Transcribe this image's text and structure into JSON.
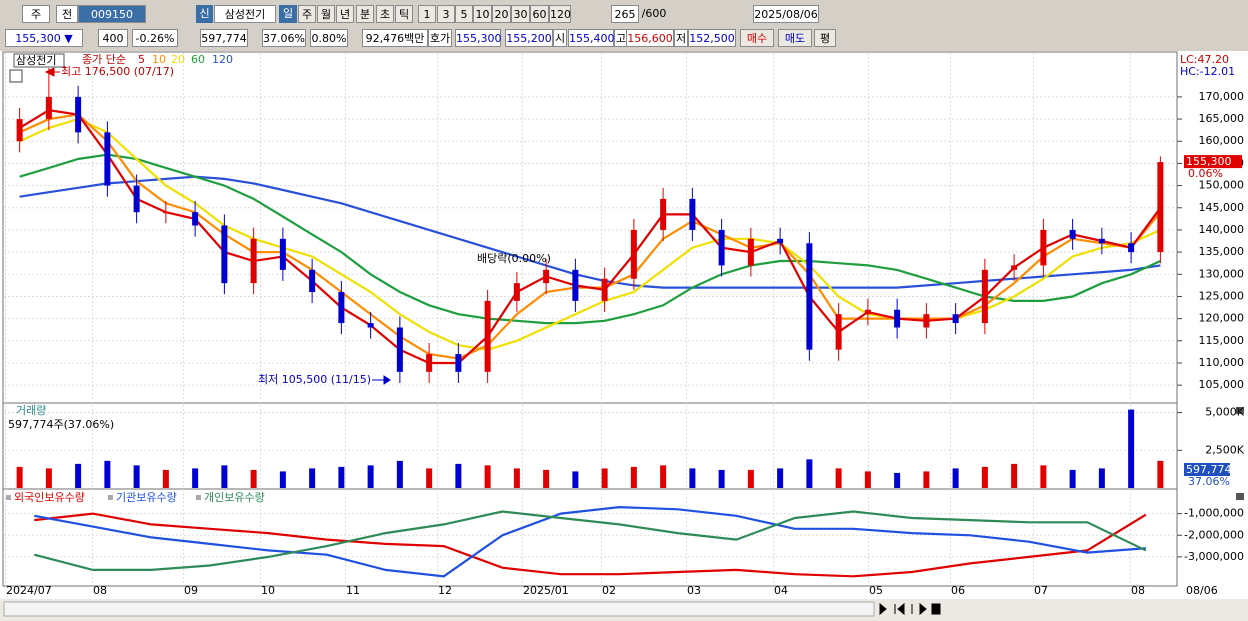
{
  "toolbar": {
    "market": "주",
    "scope": "전",
    "code": "009150",
    "badge": "신",
    "name": "삼성전기",
    "periods": [
      "일",
      "주",
      "월",
      "년",
      "분",
      "초",
      "틱"
    ],
    "intervals": [
      "1",
      "3",
      "5",
      "10",
      "20",
      "30",
      "60",
      "120"
    ],
    "count": "265",
    "count_max": "/600",
    "date": "2025/08/06"
  },
  "info_bar": {
    "price": "155,300 ▼",
    "change": "400",
    "change_rate": "-0.26%",
    "volume": "597,774",
    "volume_ratio": "37.06%",
    "turnover_rate": "0.80%",
    "amount": "92,476백만",
    "quote_label": "호가",
    "ask": "155,300",
    "bid": "155,200",
    "open_label": "시",
    "open": "155,400",
    "high_label": "고",
    "high": "156,600",
    "low_label": "저",
    "low": "152,500",
    "buttons": [
      "매수",
      "매도",
      "평"
    ]
  },
  "date_axis": [
    "2024/07",
    "08",
    "09",
    "10",
    "11",
    "12",
    "2025/01",
    "02",
    "03",
    "04",
    "05",
    "06",
    "07",
    "08",
    "08/06"
  ],
  "chart_data": [
    {
      "type": "candlestick",
      "title": "삼성전기",
      "ma_label": "종가 단순",
      "up_color": "#e00000",
      "down_color": "#0000d0",
      "open": [
        160000,
        165000,
        170000,
        162000,
        150000,
        144000,
        144000,
        141000,
        128000,
        138000,
        131000,
        126000,
        119000,
        118000,
        108000,
        112000,
        108000,
        124000,
        128000,
        131000,
        124000,
        129000,
        140000,
        147000,
        140000,
        132000,
        138000,
        137000,
        113000,
        121000,
        122000,
        118000,
        121000,
        119000,
        131000,
        132000,
        140000,
        138000,
        137000,
        135000
      ],
      "high": [
        167500,
        176500,
        172500,
        164500,
        152500,
        146500,
        146500,
        143500,
        140500,
        140500,
        133500,
        128500,
        121500,
        120500,
        114500,
        114500,
        126500,
        130500,
        133500,
        133500,
        131500,
        142500,
        149500,
        149500,
        142500,
        140500,
        140500,
        139500,
        123500,
        124500,
        124500,
        123500,
        123500,
        133500,
        134500,
        142500,
        142500,
        140500,
        139500,
        156600
      ],
      "low": [
        157500,
        162500,
        159500,
        147500,
        141500,
        141500,
        138500,
        125500,
        125500,
        128500,
        123500,
        116500,
        115500,
        105500,
        105500,
        105500,
        105500,
        121500,
        125500,
        121500,
        121500,
        126500,
        137500,
        137500,
        129500,
        129500,
        134500,
        110500,
        110500,
        118500,
        115500,
        115500,
        116500,
        116500,
        128500,
        129500,
        135500,
        134500,
        132500,
        132500
      ],
      "close": [
        165000,
        170000,
        162000,
        150000,
        144000,
        144000,
        141000,
        128000,
        138000,
        131000,
        126000,
        119000,
        118000,
        108000,
        112000,
        108000,
        124000,
        128000,
        131000,
        124000,
        129000,
        140000,
        147000,
        140000,
        132000,
        138000,
        137000,
        113000,
        121000,
        122000,
        118000,
        121000,
        119000,
        131000,
        132000,
        140000,
        138000,
        137000,
        135000,
        155300
      ],
      "series": [
        {
          "name": "5",
          "color": "#e00000",
          "values": [
            163000,
            167000,
            166000,
            157000,
            147000,
            144000,
            142500,
            135000,
            133000,
            134000,
            128500,
            122500,
            118500,
            113000,
            110000,
            110000,
            116000,
            126000,
            129500,
            127500,
            126500,
            134500,
            143500,
            143500,
            136000,
            135000,
            137500,
            125000,
            117000,
            121500,
            120000,
            119500,
            120000,
            125000,
            131500,
            136000,
            139000,
            137500,
            136000,
            145000
          ]
        },
        {
          "name": "10",
          "color": "#ff8c00",
          "values": [
            162000,
            165000,
            166000,
            160000,
            151000,
            146000,
            144000,
            139000,
            135000,
            135000,
            131000,
            126000,
            121000,
            116000,
            112000,
            111000,
            114000,
            121000,
            126000,
            127000,
            127000,
            130000,
            138000,
            142000,
            139000,
            136000,
            137000,
            130000,
            120000,
            120000,
            120000,
            120000,
            120000,
            123000,
            128000,
            134000,
            138000,
            137000,
            136000,
            144000
          ]
        },
        {
          "name": "20",
          "color": "#f0e000",
          "values": [
            160000,
            163000,
            165000,
            162000,
            156000,
            150000,
            146000,
            141000,
            138000,
            136000,
            134000,
            130000,
            126000,
            121000,
            117000,
            114000,
            113000,
            115000,
            118000,
            121000,
            124000,
            126000,
            131000,
            136000,
            138000,
            138000,
            137000,
            132000,
            125000,
            121000,
            120000,
            120000,
            120000,
            122000,
            125000,
            129000,
            134000,
            136000,
            137000,
            140000
          ]
        },
        {
          "name": "60",
          "color": "#1e9e3e",
          "values": [
            152000,
            154000,
            156000,
            157000,
            156000,
            154000,
            152000,
            150000,
            147000,
            143000,
            139000,
            135000,
            130000,
            126000,
            123000,
            121000,
            120000,
            119500,
            119000,
            119000,
            119500,
            121000,
            123000,
            127000,
            130000,
            132000,
            133000,
            133000,
            132500,
            132000,
            131000,
            129000,
            127000,
            125000,
            124000,
            124000,
            125000,
            128000,
            130000,
            133000
          ]
        },
        {
          "name": "120",
          "color": "#2850d8",
          "values": [
            147500,
            148500,
            149500,
            150500,
            151000,
            151500,
            152000,
            151500,
            150500,
            149000,
            147500,
            146000,
            144000,
            142000,
            140000,
            138000,
            136000,
            134000,
            132000,
            130000,
            128500,
            127500,
            127000,
            127000,
            127000,
            127000,
            127000,
            127000,
            127000,
            127000,
            127000,
            127500,
            128000,
            128500,
            129000,
            129500,
            130000,
            130500,
            131000,
            132000
          ]
        }
      ],
      "ylim": [
        101200,
        179900
      ],
      "yticks": [
        {
          "value": 105000,
          "label": "105,000"
        },
        {
          "value": 110000,
          "label": "110,000"
        },
        {
          "value": 115000,
          "label": "115,000"
        },
        {
          "value": 120000,
          "label": "120,000"
        },
        {
          "value": 125000,
          "label": "125,000"
        },
        {
          "value": 130000,
          "label": "130,000"
        },
        {
          "value": 135000,
          "label": "135,000"
        },
        {
          "value": 140000,
          "label": "140,000"
        },
        {
          "value": 145000,
          "label": "145,000"
        },
        {
          "value": 150000,
          "label": "150,000"
        },
        {
          "value": 155000,
          "label": "155,000"
        },
        {
          "value": 160000,
          "label": "160,000"
        },
        {
          "value": 165000,
          "label": "165,000"
        },
        {
          "value": 170000,
          "label": "170,000"
        }
      ],
      "grid": true,
      "annotations": [
        "최고 176,500 (07/17)",
        "최저 105,500 (11/15)",
        "배당락(0.00%)"
      ],
      "lc": "LC:47.20",
      "hc": "HC:-12.01",
      "last_label": "155,300",
      "last_change": "0.06%"
    },
    {
      "type": "bar",
      "title": "거래량",
      "subtitle": "597,774주(37.06%)",
      "values": [
        1400000,
        1300000,
        1600000,
        1800000,
        1500000,
        1200000,
        1300000,
        1500000,
        1200000,
        1100000,
        1300000,
        1400000,
        1500000,
        1800000,
        1300000,
        1600000,
        1500000,
        1300000,
        1200000,
        1100000,
        1300000,
        1400000,
        1500000,
        1300000,
        1200000,
        1200000,
        1300000,
        1900000,
        1300000,
        1100000,
        1000000,
        1100000,
        1300000,
        1400000,
        1600000,
        1500000,
        1200000,
        1300000,
        5200000,
        1800000
      ],
      "ylim": [
        0,
        5570000
      ],
      "yticks": [
        {
          "value": 5000000,
          "label": "5,000K"
        },
        {
          "value": 2500000,
          "label": "2,500K"
        }
      ],
      "grid": true,
      "last_label": "597,774",
      "last_ratio": "37.06%"
    },
    {
      "type": "line",
      "series": [
        {
          "name": "외국인보유수량",
          "color": "#e00000",
          "values": [
            -1300000,
            -1000000,
            -1500000,
            -1700000,
            -1900000,
            -2200000,
            -2400000,
            -2500000,
            -3500000,
            -3800000,
            -3800000,
            -3700000,
            -3600000,
            -3800000,
            -3900000,
            -3700000,
            -3300000,
            -3000000,
            -2700000,
            -1050000
          ]
        },
        {
          "name": "기관보유수량",
          "color": "#2050e0",
          "values": [
            -1100000,
            -1600000,
            -2100000,
            -2400000,
            -2700000,
            -2900000,
            -3600000,
            -3900000,
            -2000000,
            -1000000,
            -700000,
            -800000,
            -1100000,
            -1700000,
            -1700000,
            -1900000,
            -2000000,
            -2300000,
            -2800000,
            -2600000
          ]
        },
        {
          "name": "개인보유수량",
          "color": "#2e8b57",
          "values": [
            -2900000,
            -3600000,
            -3600000,
            -3400000,
            -3000000,
            -2500000,
            -1900000,
            -1500000,
            -900000,
            -1200000,
            -1500000,
            -1900000,
            -2200000,
            -1200000,
            -900000,
            -1200000,
            -1300000,
            -1400000,
            -1400000,
            -2700000
          ]
        }
      ],
      "ylim": [
        -4300000,
        0
      ],
      "yticks": [
        {
          "value": -1000000,
          "label": "-1,000,000"
        },
        {
          "value": -2000000,
          "label": "-2,000,000"
        },
        {
          "value": -3000000,
          "label": "-3,000,000"
        }
      ],
      "grid": true
    }
  ]
}
